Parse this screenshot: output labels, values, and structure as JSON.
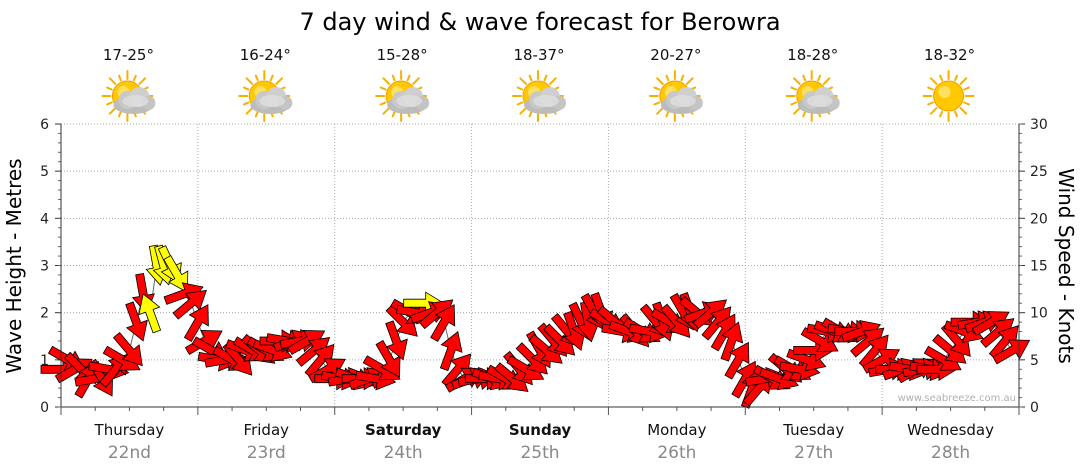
{
  "title": "7 day wind & wave forecast for Berowra",
  "watermark": "www.seabreeze.com.au",
  "days": [
    {
      "name": "Thursday",
      "date": "22nd",
      "temp": "17-25°",
      "icon": "partly-cloudy-icon",
      "bold": false
    },
    {
      "name": "Friday",
      "date": "23rd",
      "temp": "16-24°",
      "icon": "partly-cloudy-icon",
      "bold": false
    },
    {
      "name": "Saturday",
      "date": "24th",
      "temp": "15-28°",
      "icon": "partly-cloudy-icon",
      "bold": true
    },
    {
      "name": "Sunday",
      "date": "25th",
      "temp": "18-37°",
      "icon": "partly-cloudy-icon",
      "bold": true
    },
    {
      "name": "Monday",
      "date": "26th",
      "temp": "20-27°",
      "icon": "partly-cloudy-icon",
      "bold": false
    },
    {
      "name": "Tuesday",
      "date": "27th",
      "temp": "18-28°",
      "icon": "partly-cloudy-icon",
      "bold": false
    },
    {
      "name": "Wednesday",
      "date": "28th",
      "temp": "18-32°",
      "icon": "sunny-icon",
      "bold": false
    }
  ],
  "colors": {
    "wind_arrow": "#ff0000",
    "gust_arrow": "#ffff00",
    "arrow_outline": "#000000",
    "grid": "#aaaaaa"
  },
  "chart_data": {
    "type": "line",
    "title": "7 day wind & wave forecast for Berowra",
    "y_left": {
      "label": "Wave Height - Metres",
      "range": [
        0,
        6
      ],
      "ticks": [
        0,
        1,
        2,
        3,
        4,
        5,
        6
      ]
    },
    "y_right": {
      "label": "Wind Speed - Knots",
      "range": [
        0,
        30
      ],
      "ticks": [
        0,
        5,
        10,
        15,
        20,
        25,
        30
      ]
    },
    "x_categories": [
      "Thursday 22nd",
      "Friday 23rd",
      "Saturday 24th",
      "Sunday 25th",
      "Monday 26th",
      "Tuesday 27th",
      "Wednesday 28th"
    ],
    "grid": true,
    "series": [
      {
        "unit": "knots",
        "points": [
          [
            0.0,
            4
          ],
          [
            0.05,
            5
          ],
          [
            0.1,
            4
          ],
          [
            0.15,
            4
          ],
          [
            0.2,
            3
          ],
          [
            0.25,
            3
          ],
          [
            0.3,
            3
          ],
          [
            0.35,
            4
          ],
          [
            0.4,
            4
          ],
          [
            0.45,
            5
          ],
          [
            0.5,
            6
          ],
          [
            0.55,
            9
          ],
          [
            0.6,
            12
          ],
          [
            0.65,
            10
          ],
          [
            0.7,
            15
          ],
          [
            0.75,
            15
          ],
          [
            0.8,
            15
          ],
          [
            0.85,
            14
          ],
          [
            0.9,
            12
          ],
          [
            0.95,
            11
          ],
          [
            1.0,
            9
          ],
          [
            1.05,
            7
          ],
          [
            1.1,
            6
          ],
          [
            1.15,
            5
          ],
          [
            1.2,
            5
          ],
          [
            1.25,
            5
          ],
          [
            1.3,
            5
          ],
          [
            1.35,
            6
          ],
          [
            1.4,
            6
          ],
          [
            1.45,
            6
          ],
          [
            1.5,
            6
          ],
          [
            1.55,
            6
          ],
          [
            1.6,
            7
          ],
          [
            1.65,
            7
          ],
          [
            1.7,
            7
          ],
          [
            1.75,
            7
          ],
          [
            1.8,
            7
          ],
          [
            1.85,
            6
          ],
          [
            1.9,
            5
          ],
          [
            1.95,
            4
          ],
          [
            2.0,
            3
          ],
          [
            2.05,
            3
          ],
          [
            2.1,
            3
          ],
          [
            2.15,
            3
          ],
          [
            2.2,
            3
          ],
          [
            2.25,
            3
          ],
          [
            2.3,
            3
          ],
          [
            2.35,
            4
          ],
          [
            2.4,
            5
          ],
          [
            2.45,
            7
          ],
          [
            2.5,
            9
          ],
          [
            2.55,
            10
          ],
          [
            2.6,
            10
          ],
          [
            2.65,
            11
          ],
          [
            2.7,
            10
          ],
          [
            2.75,
            10
          ],
          [
            2.8,
            9
          ],
          [
            2.85,
            6
          ],
          [
            2.9,
            4
          ],
          [
            2.95,
            3
          ],
          [
            3.0,
            3
          ],
          [
            3.05,
            3
          ],
          [
            3.1,
            3
          ],
          [
            3.15,
            3
          ],
          [
            3.2,
            3
          ],
          [
            3.25,
            3
          ],
          [
            3.3,
            3
          ],
          [
            3.35,
            4
          ],
          [
            3.4,
            4
          ],
          [
            3.45,
            5
          ],
          [
            3.5,
            6
          ],
          [
            3.55,
            6
          ],
          [
            3.6,
            7
          ],
          [
            3.65,
            7
          ],
          [
            3.7,
            8
          ],
          [
            3.75,
            8
          ],
          [
            3.8,
            9
          ],
          [
            3.85,
            9
          ],
          [
            3.9,
            10
          ],
          [
            3.95,
            10
          ],
          [
            4.0,
            9
          ],
          [
            4.05,
            9
          ],
          [
            4.1,
            8
          ],
          [
            4.15,
            8
          ],
          [
            4.2,
            8
          ],
          [
            4.25,
            8
          ],
          [
            4.3,
            8
          ],
          [
            4.35,
            9
          ],
          [
            4.4,
            9
          ],
          [
            4.45,
            9
          ],
          [
            4.5,
            9
          ],
          [
            4.55,
            10
          ],
          [
            4.6,
            10
          ],
          [
            4.65,
            10
          ],
          [
            4.7,
            10
          ],
          [
            4.75,
            10
          ],
          [
            4.8,
            9
          ],
          [
            4.85,
            8
          ],
          [
            4.9,
            7
          ],
          [
            4.95,
            5
          ],
          [
            5.0,
            3
          ],
          [
            5.05,
            2
          ],
          [
            5.1,
            2
          ],
          [
            5.15,
            3
          ],
          [
            5.2,
            3
          ],
          [
            5.25,
            3
          ],
          [
            5.3,
            4
          ],
          [
            5.35,
            4
          ],
          [
            5.4,
            4
          ],
          [
            5.45,
            5
          ],
          [
            5.5,
            6
          ],
          [
            5.55,
            7
          ],
          [
            5.6,
            8
          ],
          [
            5.65,
            8
          ],
          [
            5.7,
            8
          ],
          [
            5.75,
            8
          ],
          [
            5.8,
            8
          ],
          [
            5.85,
            8
          ],
          [
            5.9,
            7
          ],
          [
            5.95,
            6
          ],
          [
            6.0,
            5
          ],
          [
            6.05,
            4
          ],
          [
            6.1,
            4
          ],
          [
            6.15,
            4
          ],
          [
            6.2,
            4
          ],
          [
            6.25,
            4
          ],
          [
            6.3,
            4
          ],
          [
            6.35,
            4
          ],
          [
            6.4,
            4
          ],
          [
            6.45,
            5
          ],
          [
            6.5,
            6
          ],
          [
            6.55,
            7
          ],
          [
            6.6,
            8
          ],
          [
            6.65,
            9
          ],
          [
            6.7,
            9
          ],
          [
            6.75,
            9
          ],
          [
            6.8,
            9
          ],
          [
            6.85,
            8
          ],
          [
            6.9,
            7
          ],
          [
            6.95,
            6
          ]
        ]
      }
    ],
    "arrow_directions_deg": [
      90,
      60,
      120,
      45,
      150,
      100,
      30,
      80,
      140,
      60,
      40,
      20,
      10,
      200,
      10,
      15,
      25,
      30,
      110,
      130,
      150,
      120,
      60,
      80,
      100,
      60,
      40,
      70,
      60,
      50,
      60,
      70,
      90,
      80,
      110,
      100,
      120,
      130,
      140,
      120,
      90,
      80,
      100,
      70,
      90,
      110,
      80,
      60,
      30,
      20,
      45,
      60,
      80,
      90,
      110,
      130,
      150,
      160,
      140,
      120,
      110,
      100,
      90,
      70,
      80,
      60,
      50,
      40,
      60,
      45,
      30,
      50,
      40,
      45,
      40,
      20,
      25,
      10,
      30,
      20,
      60,
      50,
      80,
      70,
      40,
      60,
      80,
      40,
      20,
      60,
      40,
      30,
      20,
      50,
      110,
      130,
      140,
      150,
      160,
      150,
      150,
      160,
      140,
      100,
      60,
      70,
      50,
      60,
      80,
      70,
      90,
      60,
      80,
      70,
      60,
      80,
      90,
      110,
      130,
      140,
      120,
      100,
      90,
      110,
      80,
      120,
      100,
      80,
      90,
      60,
      50,
      40,
      70,
      90,
      100,
      110,
      120,
      130,
      140,
      120
    ],
    "gust_indices": [
      13,
      14,
      15,
      16,
      17,
      53
    ]
  }
}
